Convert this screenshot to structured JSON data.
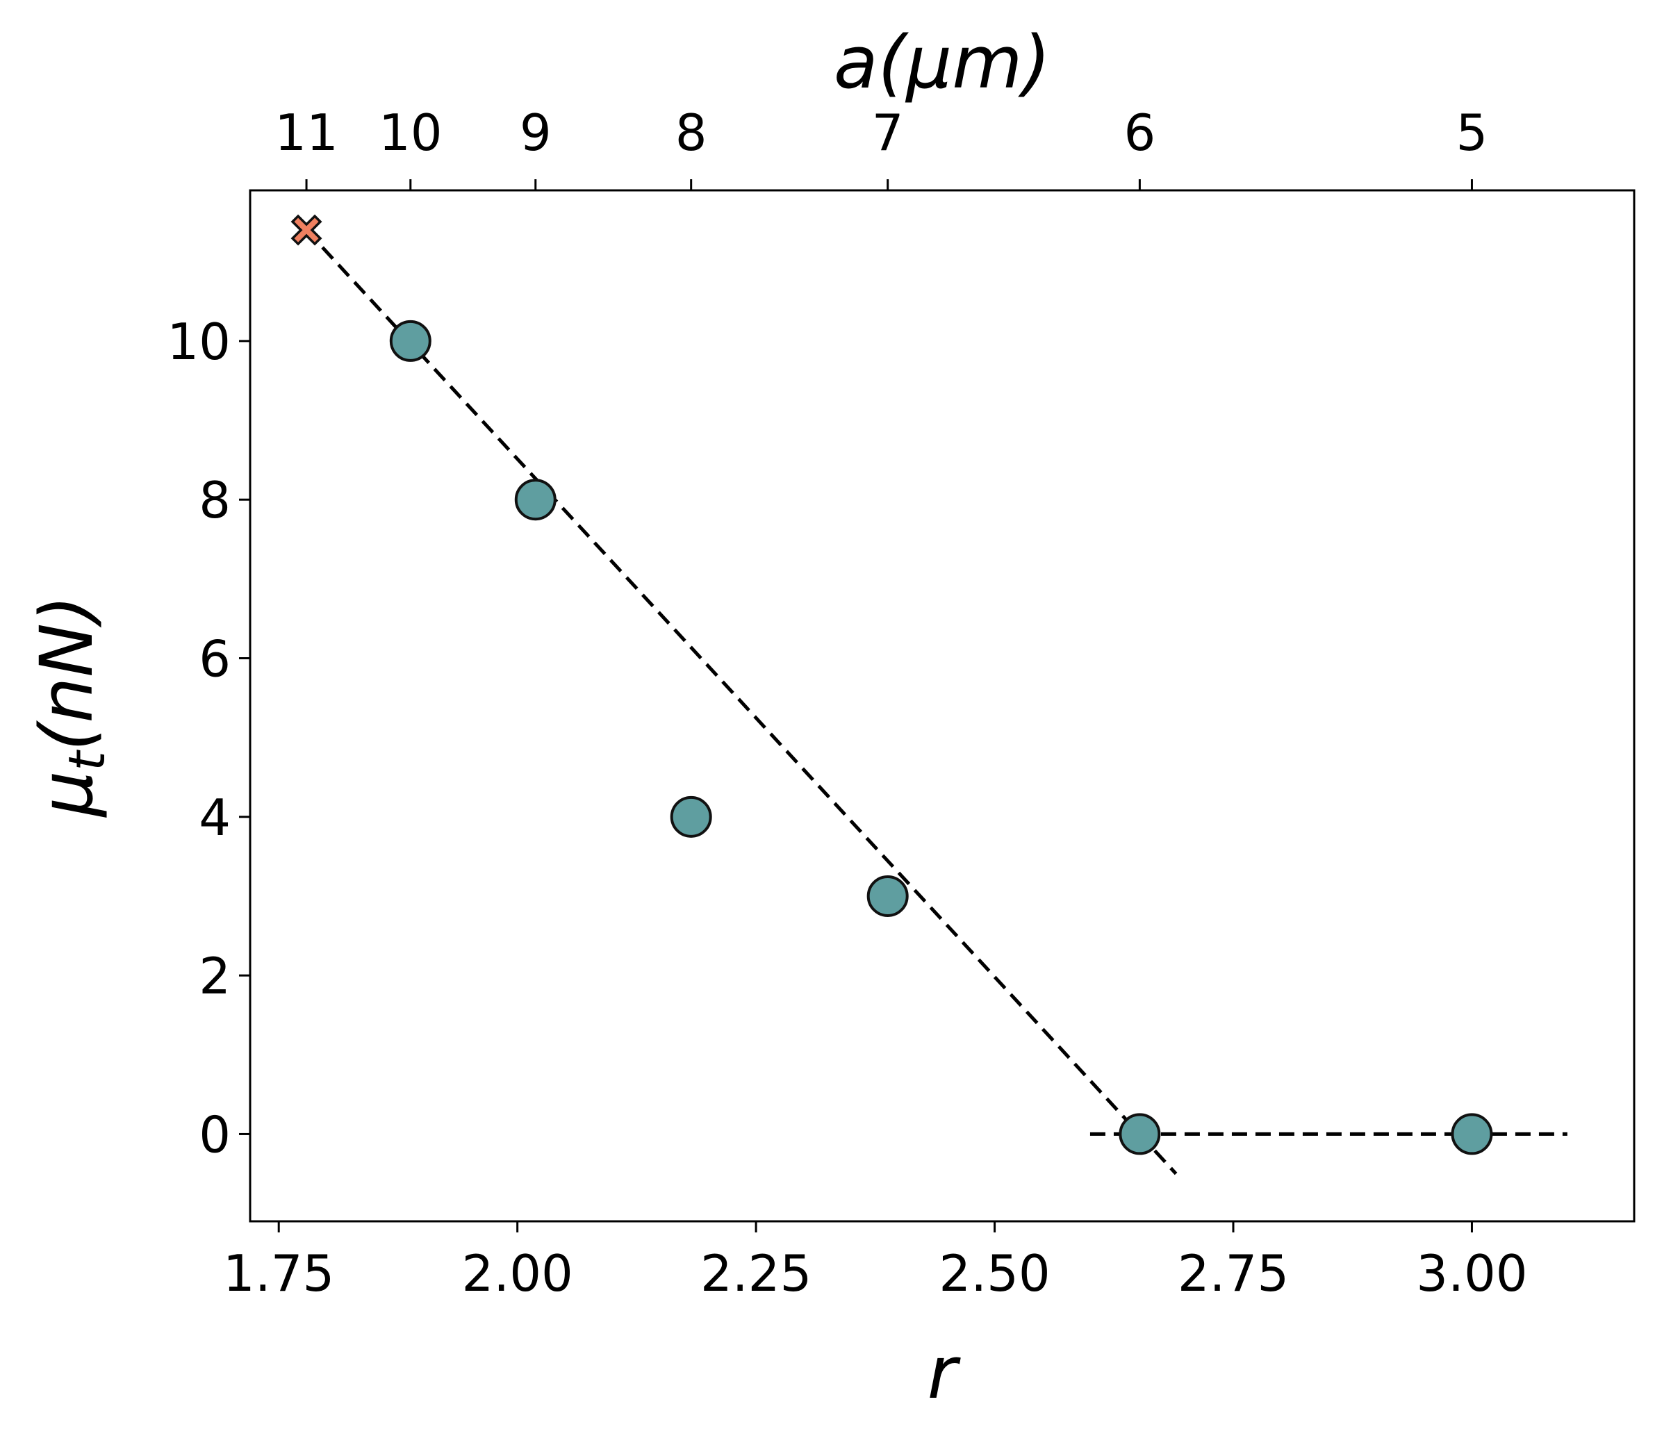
{
  "chart_data": {
    "type": "scatter",
    "xlabel": "r",
    "ylabel": "μ",
    "ylabel_sub": "t",
    "ylabel_unit": "(nN)",
    "top_xlabel": "a(μm)",
    "xlim": [
      1.72,
      3.17
    ],
    "ylim": [
      -1.1,
      11.9
    ],
    "xticks": [
      1.75,
      2.0,
      2.25,
      2.5,
      2.75,
      3.0
    ],
    "xtick_labels": [
      "1.75",
      "2.00",
      "2.25",
      "2.50",
      "2.75",
      "3.00"
    ],
    "yticks": [
      0,
      2,
      4,
      6,
      8,
      10
    ],
    "ytick_labels": [
      "0",
      "2",
      "4",
      "6",
      "8",
      "10"
    ],
    "top_ticks": [
      {
        "label": "11",
        "r": 1.779
      },
      {
        "label": "10",
        "r": 1.888
      },
      {
        "label": "9",
        "r": 2.019
      },
      {
        "label": "8",
        "r": 2.182
      },
      {
        "label": "7",
        "r": 2.388
      },
      {
        "label": "6",
        "r": 2.652
      },
      {
        "label": "5",
        "r": 3.0
      }
    ],
    "series": [
      {
        "marker": "circle",
        "color": "#5f9ea0",
        "edge": "#111111",
        "points": [
          {
            "x": 1.888,
            "y": 10
          },
          {
            "x": 2.019,
            "y": 8
          },
          {
            "x": 2.182,
            "y": 4
          },
          {
            "x": 2.388,
            "y": 3
          },
          {
            "x": 2.652,
            "y": 0
          },
          {
            "x": 3.0,
            "y": 0
          }
        ]
      },
      {
        "marker": "x",
        "color": "#f08060",
        "edge": "#111111",
        "points": [
          {
            "x": 1.779,
            "y": 11.4
          }
        ]
      }
    ],
    "lines": [
      {
        "style": "dashed",
        "color": "#000000",
        "x": [
          1.779,
          2.69
        ],
        "y": [
          11.4,
          -0.5
        ]
      },
      {
        "style": "dashed",
        "color": "#000000",
        "x": [
          2.6,
          3.1
        ],
        "y": [
          0,
          0
        ]
      }
    ],
    "grid": false
  }
}
